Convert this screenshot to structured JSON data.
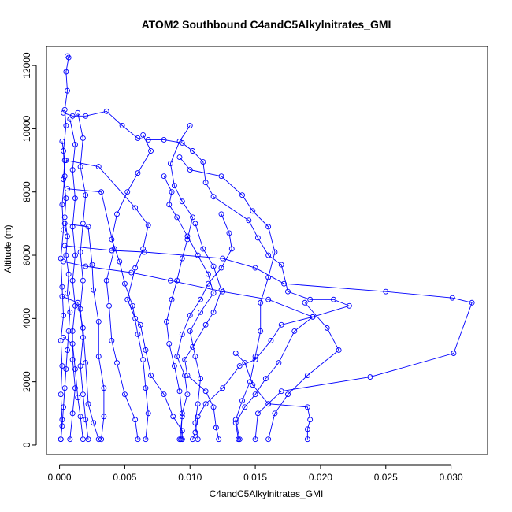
{
  "chart_data": {
    "type": "scatter",
    "title": "ATOM2 Southbound C4andC5AlkylnitratesGMI",
    "title_display": "ATOM2 Southbound C4andC5Alkylnitrates_GMI",
    "xlabel": "C4andC5Alkylnitrates_GMI",
    "ylabel": "Altitude (m)",
    "xlim": [
      -0.001,
      0.0328
    ],
    "ylim": [
      -300,
      12600
    ],
    "x_ticks": [
      0.0,
      0.005,
      0.01,
      0.015,
      0.02,
      0.025,
      0.03
    ],
    "x_tick_labels": [
      "0.000",
      "0.005",
      "0.010",
      "0.015",
      "0.020",
      "0.025",
      "0.030"
    ],
    "y_ticks": [
      0,
      2000,
      4000,
      6000,
      8000,
      10000,
      12000
    ],
    "y_tick_labels": [
      "0",
      "2000",
      "4000",
      "6000",
      "8000",
      "10000",
      "12000"
    ],
    "grid": false,
    "legend": "none",
    "marker": "open-circle",
    "line_connected": true,
    "color": "#0000ff",
    "series": [
      {
        "points": [
          [
            0.0001,
            180
          ],
          [
            0.0002,
            800
          ],
          [
            0.0001,
            1600
          ],
          [
            0.0002,
            2500
          ],
          [
            0.0001,
            3300
          ],
          [
            0.0003,
            4100
          ],
          [
            0.0002,
            5000
          ],
          [
            0.0001,
            5900
          ],
          [
            0.0003,
            6800
          ],
          [
            0.0002,
            7600
          ],
          [
            0.0004,
            8500
          ],
          [
            0.0003,
            9300
          ],
          [
            0.0005,
            10100
          ],
          [
            0.0004,
            10600
          ],
          [
            0.0006,
            11200
          ],
          [
            0.0005,
            11800
          ],
          [
            0.0007,
            12250
          ],
          [
            0.0006,
            12300
          ]
        ]
      },
      {
        "points": [
          [
            0.0003,
            10500
          ],
          [
            0.001,
            10400
          ],
          [
            0.002,
            10400
          ],
          [
            0.0036,
            10550
          ],
          [
            0.0048,
            10100
          ],
          [
            0.006,
            9700
          ],
          [
            0.0068,
            9650
          ],
          [
            0.008,
            9650
          ],
          [
            0.0094,
            9550
          ],
          [
            0.0102,
            9300
          ],
          [
            0.011,
            8950
          ],
          [
            0.0112,
            8300
          ],
          [
            0.0118,
            7850
          ],
          [
            0.0145,
            7100
          ],
          [
            0.0152,
            6550
          ],
          [
            0.016,
            6000
          ],
          [
            0.017,
            5700
          ],
          [
            0.0175,
            4850
          ],
          [
            0.0192,
            4600
          ],
          [
            0.021,
            4600
          ],
          [
            0.0222,
            4400
          ],
          [
            0.0194,
            4050
          ],
          [
            0.017,
            3800
          ],
          [
            0.0162,
            3300
          ],
          [
            0.015,
            2700
          ],
          [
            0.0138,
            2500
          ],
          [
            0.0125,
            1800
          ],
          [
            0.0112,
            1300
          ],
          [
            0.0106,
            900
          ],
          [
            0.0104,
            400
          ],
          [
            0.0102,
            180
          ]
        ]
      },
      {
        "points": [
          [
            0.0004,
            6300
          ],
          [
            0.004,
            6150
          ],
          [
            0.0065,
            6100
          ],
          [
            0.0125,
            5900
          ],
          [
            0.015,
            5600
          ],
          [
            0.0172,
            5100
          ],
          [
            0.025,
            4850
          ],
          [
            0.0301,
            4650
          ],
          [
            0.0316,
            4500
          ],
          [
            0.0302,
            2900
          ],
          [
            0.0238,
            2150
          ],
          [
            0.017,
            1700
          ],
          [
            0.0152,
            1000
          ],
          [
            0.015,
            180
          ]
        ]
      },
      {
        "points": [
          [
            0.0003,
            5800
          ],
          [
            0.002,
            5650
          ],
          [
            0.0055,
            5450
          ],
          [
            0.0085,
            5200
          ],
          [
            0.0125,
            4850
          ],
          [
            0.016,
            4600
          ],
          [
            0.0194,
            4050
          ],
          [
            0.018,
            3600
          ],
          [
            0.0168,
            2600
          ],
          [
            0.0158,
            2100
          ],
          [
            0.015,
            1600
          ],
          [
            0.0142,
            1200
          ],
          [
            0.0135,
            700
          ],
          [
            0.0137,
            180
          ]
        ]
      },
      {
        "points": [
          [
            0.0005,
            9000
          ],
          [
            0.003,
            8800
          ],
          [
            0.0058,
            7500
          ],
          [
            0.0068,
            6950
          ],
          [
            0.0064,
            6200
          ],
          [
            0.0058,
            5600
          ],
          [
            0.0052,
            4600
          ],
          [
            0.0058,
            4000
          ],
          [
            0.0062,
            3800
          ],
          [
            0.0066,
            3000
          ],
          [
            0.007,
            2200
          ],
          [
            0.008,
            1600
          ],
          [
            0.0087,
            900
          ],
          [
            0.0094,
            450
          ],
          [
            0.0094,
            180
          ]
        ]
      },
      {
        "points": [
          [
            0.0006,
            8100
          ],
          [
            0.0032,
            8000
          ],
          [
            0.0042,
            6200
          ],
          [
            0.0036,
            5200
          ],
          [
            0.0038,
            4400
          ],
          [
            0.004,
            3300
          ],
          [
            0.0044,
            2600
          ],
          [
            0.005,
            1600
          ],
          [
            0.0058,
            800
          ],
          [
            0.006,
            180
          ]
        ]
      },
      {
        "points": [
          [
            0.0004,
            7000
          ],
          [
            0.0022,
            6900
          ],
          [
            0.0025,
            5700
          ],
          [
            0.0026,
            4900
          ],
          [
            0.003,
            3900
          ],
          [
            0.003,
            2800
          ],
          [
            0.0034,
            1800
          ],
          [
            0.0034,
            900
          ],
          [
            0.0032,
            180
          ]
        ]
      },
      {
        "points": [
          [
            0.0002,
            4700
          ],
          [
            0.0014,
            4500
          ],
          [
            0.0018,
            3700
          ],
          [
            0.002,
            2600
          ],
          [
            0.0022,
            1300
          ],
          [
            0.0026,
            700
          ],
          [
            0.003,
            180
          ]
        ]
      },
      {
        "points": [
          [
            0.0003,
            3400
          ],
          [
            0.001,
            3200
          ],
          [
            0.0012,
            2400
          ],
          [
            0.0014,
            1500
          ],
          [
            0.0016,
            900
          ],
          [
            0.0018,
            180
          ]
        ]
      },
      {
        "points": [
          [
            0.0104,
            7000
          ],
          [
            0.011,
            6200
          ],
          [
            0.0118,
            5650
          ],
          [
            0.0124,
            4900
          ],
          [
            0.0118,
            4200
          ],
          [
            0.0112,
            3800
          ],
          [
            0.0102,
            3100
          ],
          [
            0.0096,
            2700
          ],
          [
            0.0098,
            2200
          ],
          [
            0.0112,
            1700
          ],
          [
            0.0118,
            1200
          ],
          [
            0.012,
            550
          ],
          [
            0.0122,
            180
          ]
        ]
      },
      {
        "points": [
          [
            0.0135,
            2900
          ],
          [
            0.0142,
            2600
          ],
          [
            0.0148,
            1900
          ],
          [
            0.016,
            1300
          ],
          [
            0.019,
            1200
          ],
          [
            0.0192,
            800
          ],
          [
            0.019,
            500
          ],
          [
            0.019,
            180
          ]
        ]
      },
      {
        "points": [
          [
            0.0188,
            4500
          ],
          [
            0.0205,
            3700
          ],
          [
            0.0214,
            3000
          ],
          [
            0.019,
            2200
          ],
          [
            0.0175,
            1600
          ],
          [
            0.0165,
            1000
          ],
          [
            0.016,
            180
          ]
        ]
      },
      {
        "points": [
          [
            0.0124,
            7300
          ],
          [
            0.013,
            6700
          ],
          [
            0.0132,
            6200
          ],
          [
            0.0124,
            5600
          ],
          [
            0.0114,
            5100
          ],
          [
            0.0108,
            4600
          ],
          [
            0.01,
            4100
          ],
          [
            0.0094,
            3500
          ],
          [
            0.009,
            2800
          ],
          [
            0.0096,
            2200
          ],
          [
            0.0098,
            1600
          ],
          [
            0.0094,
            1000
          ],
          [
            0.0093,
            180
          ]
        ]
      },
      {
        "points": [
          [
            0.008,
            8500
          ],
          [
            0.0086,
            8000
          ],
          [
            0.0084,
            7600
          ],
          [
            0.009,
            7200
          ],
          [
            0.0098,
            6600
          ],
          [
            0.0106,
            6000
          ],
          [
            0.0114,
            5400
          ],
          [
            0.0118,
            4800
          ],
          [
            0.0108,
            4200
          ],
          [
            0.01,
            3600
          ],
          [
            0.0104,
            2800
          ],
          [
            0.0108,
            2100
          ],
          [
            0.0106,
            1300
          ],
          [
            0.0104,
            700
          ],
          [
            0.0106,
            180
          ]
        ]
      },
      {
        "points": [
          [
            0.0092,
            9100
          ],
          [
            0.01,
            8700
          ],
          [
            0.0124,
            8500
          ],
          [
            0.014,
            7900
          ],
          [
            0.0148,
            7400
          ],
          [
            0.016,
            6900
          ],
          [
            0.0165,
            6100
          ],
          [
            0.016,
            5300
          ],
          [
            0.0154,
            4500
          ],
          [
            0.0154,
            3600
          ],
          [
            0.015,
            2800
          ],
          [
            0.0146,
            2000
          ],
          [
            0.014,
            1400
          ],
          [
            0.0135,
            800
          ],
          [
            0.0138,
            180
          ]
        ]
      },
      {
        "points": [
          [
            0.0008,
            10300
          ],
          [
            0.0012,
            9500
          ],
          [
            0.001,
            8700
          ],
          [
            0.0012,
            7800
          ],
          [
            0.001,
            6900
          ],
          [
            0.0012,
            6000
          ],
          [
            0.001,
            5200
          ],
          [
            0.0012,
            4400
          ],
          [
            0.001,
            3600
          ],
          [
            0.001,
            2700
          ],
          [
            0.0012,
            1800
          ],
          [
            0.001,
            1000
          ],
          [
            0.0008,
            180
          ]
        ]
      },
      {
        "points": [
          [
            0.0014,
            10500
          ],
          [
            0.0018,
            9700
          ],
          [
            0.0016,
            8800
          ],
          [
            0.002,
            7900
          ],
          [
            0.0018,
            7000
          ],
          [
            0.0016,
            6100
          ],
          [
            0.0018,
            5200
          ],
          [
            0.0016,
            4300
          ],
          [
            0.0018,
            3400
          ],
          [
            0.0016,
            2500
          ],
          [
            0.0018,
            1600
          ],
          [
            0.002,
            800
          ],
          [
            0.0022,
            180
          ]
        ]
      },
      {
        "points": [
          [
            0.0064,
            9800
          ],
          [
            0.007,
            9300
          ],
          [
            0.006,
            8600
          ],
          [
            0.0052,
            8000
          ],
          [
            0.0044,
            7300
          ],
          [
            0.004,
            6500
          ],
          [
            0.0046,
            5800
          ],
          [
            0.005,
            5100
          ],
          [
            0.0056,
            4400
          ],
          [
            0.006,
            3500
          ],
          [
            0.0064,
            2700
          ],
          [
            0.0066,
            1800
          ],
          [
            0.0068,
            1000
          ],
          [
            0.0066,
            180
          ]
        ]
      },
      {
        "points": [
          [
            0.01,
            10100
          ],
          [
            0.0092,
            9600
          ],
          [
            0.0085,
            8900
          ],
          [
            0.0088,
            8200
          ],
          [
            0.0094,
            7700
          ],
          [
            0.0102,
            7200
          ],
          [
            0.0098,
            6500
          ],
          [
            0.0094,
            5900
          ],
          [
            0.009,
            5200
          ],
          [
            0.0086,
            4600
          ],
          [
            0.0082,
            3900
          ],
          [
            0.0084,
            3200
          ],
          [
            0.0088,
            2500
          ],
          [
            0.0092,
            1700
          ],
          [
            0.0094,
            900
          ],
          [
            0.0092,
            180
          ]
        ]
      },
      {
        "points": [
          [
            0.0002,
            9600
          ],
          [
            0.0004,
            9000
          ],
          [
            0.0003,
            8400
          ],
          [
            0.0005,
            7800
          ],
          [
            0.0004,
            7200
          ],
          [
            0.0006,
            6600
          ],
          [
            0.0005,
            6000
          ],
          [
            0.0007,
            5400
          ],
          [
            0.0006,
            4800
          ],
          [
            0.0008,
            4200
          ],
          [
            0.0007,
            3600
          ],
          [
            0.0006,
            3000
          ],
          [
            0.0005,
            2400
          ],
          [
            0.0004,
            1800
          ],
          [
            0.0003,
            1200
          ],
          [
            0.0002,
            600
          ],
          [
            0.0001,
            180
          ]
        ]
      }
    ]
  }
}
